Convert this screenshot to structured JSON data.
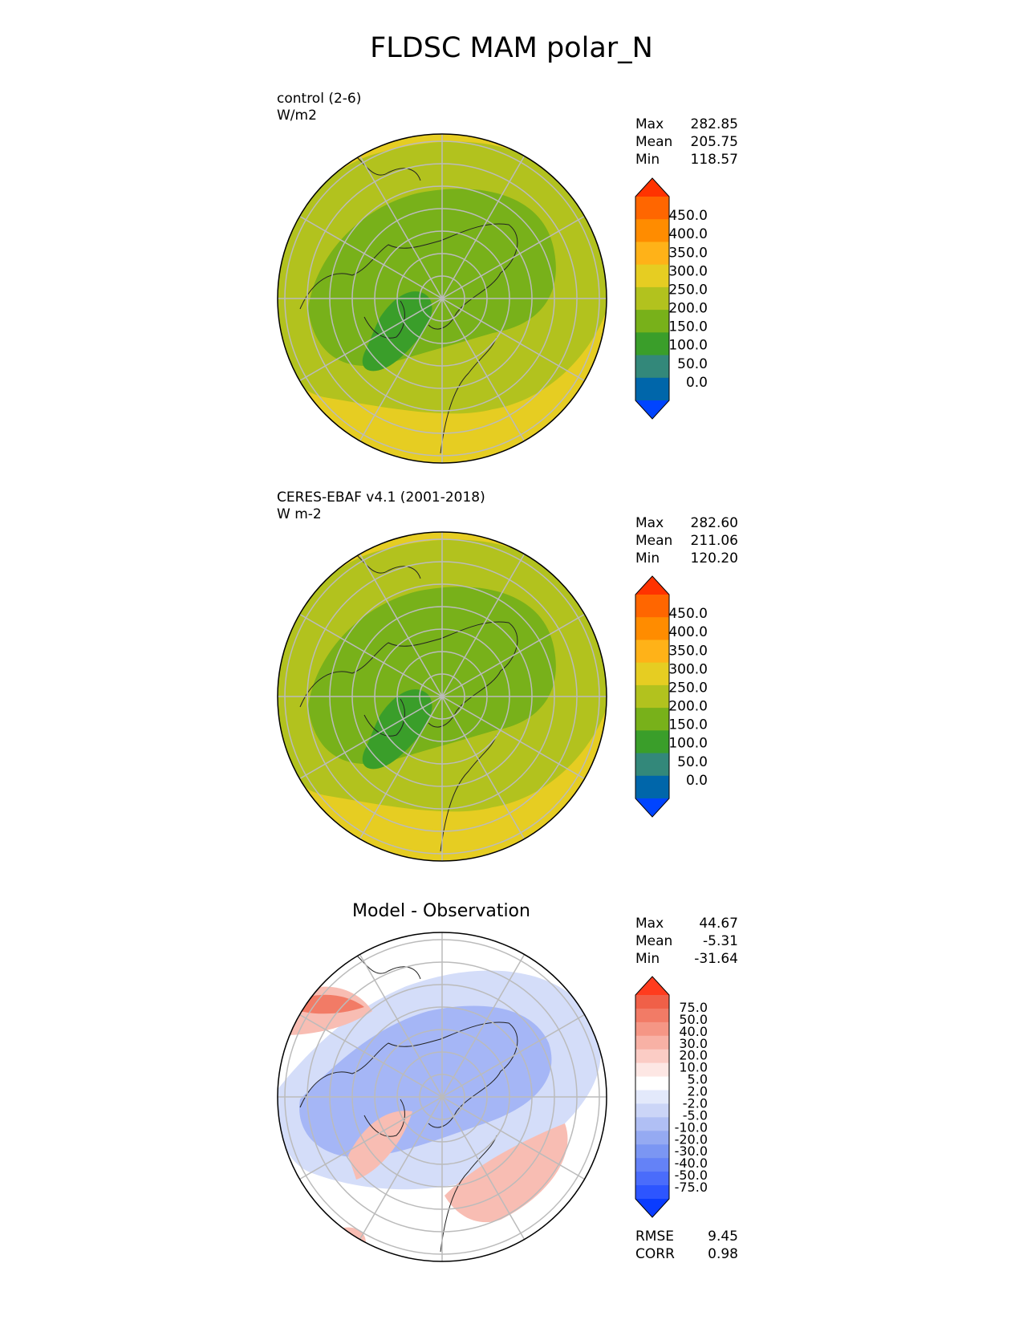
{
  "title": "FLDSC MAM polar_N",
  "panels": [
    {
      "case_name": "control (2-6)",
      "units": "W/m2",
      "stats": {
        "max_label": "Max",
        "max": "282.85",
        "mean_label": "Mean",
        "mean": "205.75",
        "min_label": "Min",
        "min": "118.57"
      },
      "colorbar": {
        "ticks": [
          "450.0",
          "400.0",
          "350.0",
          "300.0",
          "250.0",
          "200.0",
          "150.0",
          "100.0",
          "50.0",
          "0.0"
        ],
        "colors": [
          "#0044ff",
          "#0066aa",
          "#33887a",
          "#3a9e2a",
          "#78b11a",
          "#b2c21e",
          "#e6cd22",
          "#ffb218",
          "#ff8c00",
          "#ff6600",
          "#ff3300"
        ]
      },
      "map_colors": {
        "outer": "#e6cd22",
        "mid": "#b2c21e",
        "inner": "#78b11a",
        "low": "#3a9e2a"
      }
    },
    {
      "case_name": "CERES-EBAF v4.1 (2001-2018)",
      "units": "W m-2",
      "stats": {
        "max_label": "Max",
        "max": "282.60",
        "mean_label": "Mean",
        "mean": "211.06",
        "min_label": "Min",
        "min": "120.20"
      },
      "colorbar": {
        "ticks": [
          "450.0",
          "400.0",
          "350.0",
          "300.0",
          "250.0",
          "200.0",
          "150.0",
          "100.0",
          "50.0",
          "0.0"
        ],
        "colors": [
          "#0044ff",
          "#0066aa",
          "#33887a",
          "#3a9e2a",
          "#78b11a",
          "#b2c21e",
          "#e6cd22",
          "#ffb218",
          "#ff8c00",
          "#ff6600",
          "#ff3300"
        ]
      },
      "map_colors": {
        "outer": "#e6cd22",
        "mid": "#b2c21e",
        "inner": "#78b11a",
        "low": "#3a9e2a"
      }
    },
    {
      "plot_title": "Model - Observation",
      "stats": {
        "max_label": "Max",
        "max": "44.67",
        "mean_label": "Mean",
        "mean": "-5.31",
        "min_label": "Min",
        "min": "-31.64"
      },
      "colorbar": {
        "ticks": [
          "75.0",
          "50.0",
          "40.0",
          "30.0",
          "20.0",
          "10.0",
          "5.0",
          "2.0",
          "-2.0",
          "-5.0",
          "-10.0",
          "-20.0",
          "-30.0",
          "-40.0",
          "-50.0",
          "-75.0"
        ],
        "colors": [
          "#0a3cff",
          "#2d55ff",
          "#4a6cfb",
          "#6482f7",
          "#7b96f3",
          "#95aaf2",
          "#b0bff4",
          "#cbd5f7",
          "#e3e9fb",
          "#ffffff",
          "#fde7e4",
          "#fbccc5",
          "#f8b1a5",
          "#f59685",
          "#f27b66",
          "#f06048",
          "#ff3c1e"
        ]
      },
      "stats_bottom": {
        "rmse_label": "RMSE",
        "rmse": "9.45",
        "corr_label": "CORR",
        "corr": "0.98"
      },
      "map_colors": {
        "outer": "#ffffff",
        "neg": "#a5b6f6",
        "neg_light": "#d4ddf9",
        "pos": "#f8bdb3",
        "pos_strong": "#f27b66"
      }
    }
  ]
}
